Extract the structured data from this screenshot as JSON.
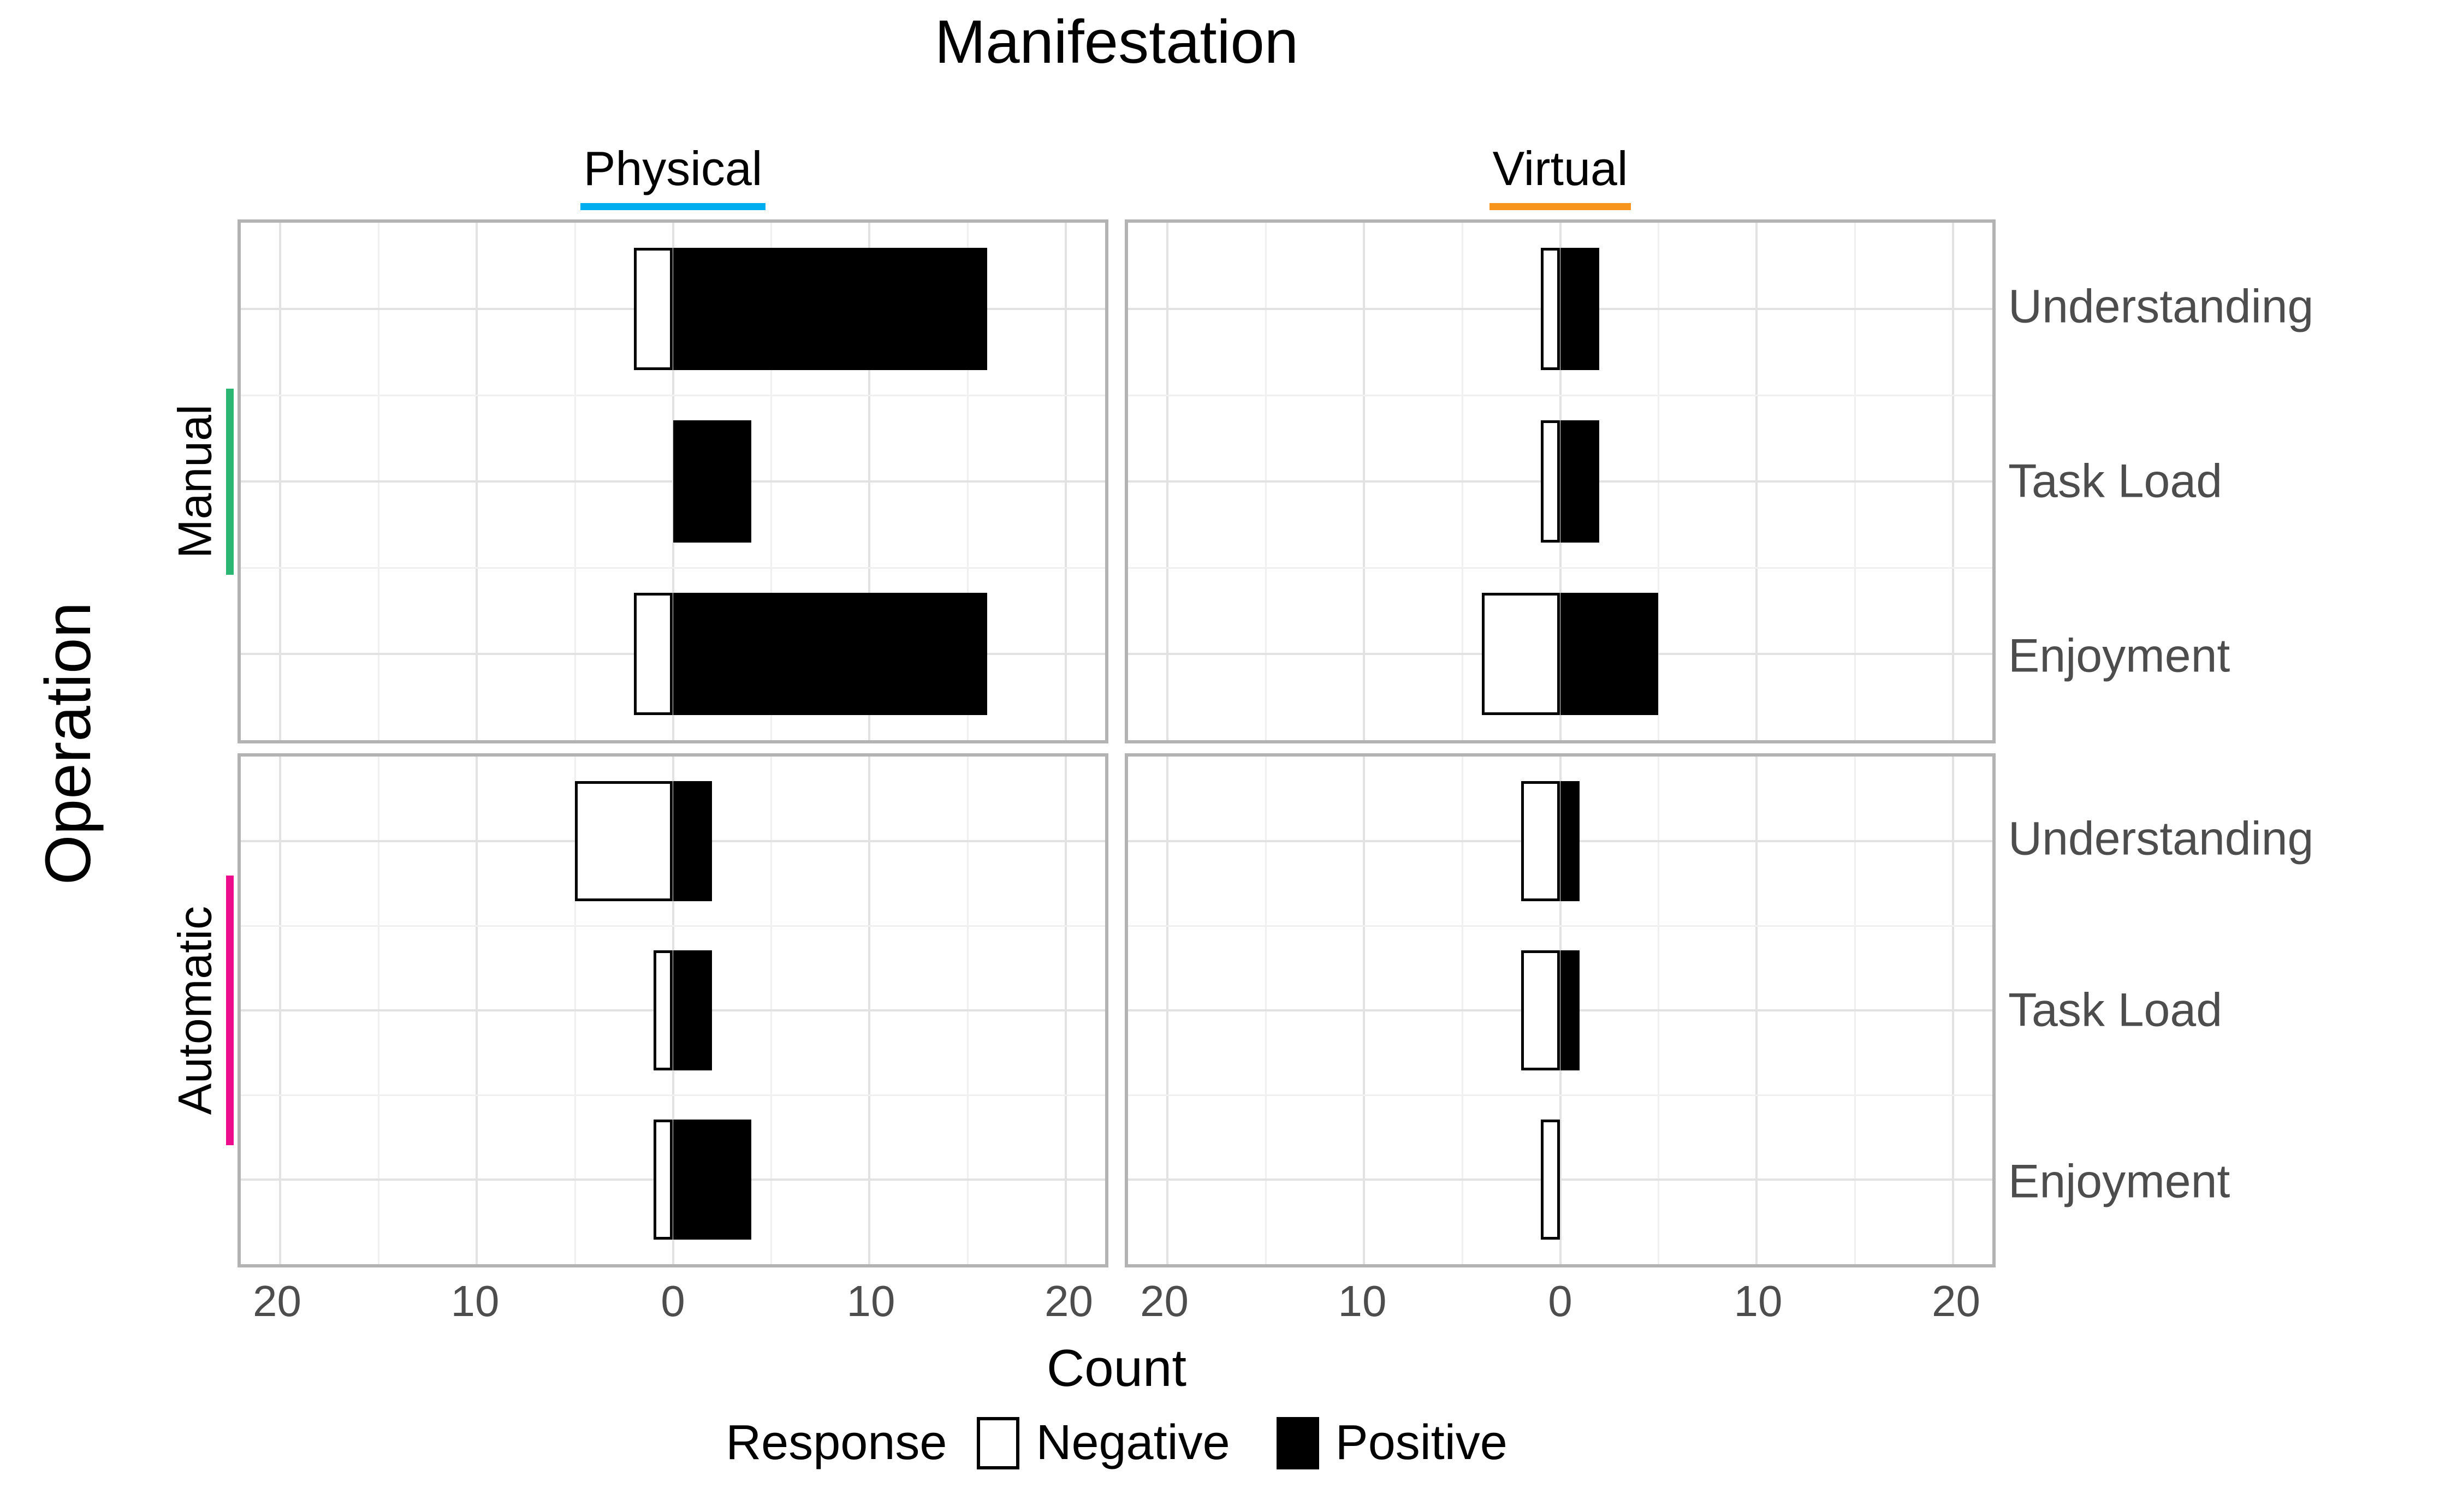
{
  "chart_data": {
    "type": "bar",
    "subtype": "horizontal-diverging-stacked",
    "title": "Manifestation",
    "col_facet_title": "Manifestation",
    "row_facet_title": "Operation",
    "xlabel": "Count",
    "x_tick_values": [
      -20,
      -10,
      0,
      10,
      20
    ],
    "x_tick_display": [
      "20",
      "10",
      "0",
      "10",
      "20"
    ],
    "xlim": [
      -22,
      22
    ],
    "grid": {
      "major_x": [
        -20,
        -10,
        0,
        10,
        20
      ],
      "minor_x": [
        -15,
        -5,
        5,
        15
      ],
      "grid_on": true
    },
    "categories": [
      "Understanding",
      "Task Load",
      "Enjoyment"
    ],
    "col_facets": [
      {
        "label": "Physical",
        "accent_color": "#00AEEF"
      },
      {
        "label": "Virtual",
        "accent_color": "#F7941E"
      }
    ],
    "row_facets": [
      {
        "label": "Manual",
        "accent_color": "#2BB673"
      },
      {
        "label": "Automatic",
        "accent_color": "#EC0C8C"
      }
    ],
    "legend": {
      "title": "Response",
      "entries": [
        {
          "label": "Negative",
          "fill": "#FFFFFF"
        },
        {
          "label": "Positive",
          "fill": "#000000"
        }
      ],
      "position": "bottom"
    },
    "panels": [
      {
        "row": "Manual",
        "col": "Physical",
        "bars": [
          {
            "category": "Understanding",
            "negative": 2,
            "positive": 16
          },
          {
            "category": "Task Load",
            "negative": 0,
            "positive": 4
          },
          {
            "category": "Enjoyment",
            "negative": 2,
            "positive": 16
          }
        ]
      },
      {
        "row": "Manual",
        "col": "Virtual",
        "bars": [
          {
            "category": "Understanding",
            "negative": 1,
            "positive": 2
          },
          {
            "category": "Task Load",
            "negative": 1,
            "positive": 2
          },
          {
            "category": "Enjoyment",
            "negative": 4,
            "positive": 5
          }
        ]
      },
      {
        "row": "Automatic",
        "col": "Physical",
        "bars": [
          {
            "category": "Understanding",
            "negative": 5,
            "positive": 2
          },
          {
            "category": "Task Load",
            "negative": 1,
            "positive": 2
          },
          {
            "category": "Enjoyment",
            "negative": 1,
            "positive": 4
          }
        ]
      },
      {
        "row": "Automatic",
        "col": "Virtual",
        "bars": [
          {
            "category": "Understanding",
            "negative": 2,
            "positive": 1
          },
          {
            "category": "Task Load",
            "negative": 2,
            "positive": 1
          },
          {
            "category": "Enjoyment",
            "negative": 1,
            "positive": 0
          }
        ]
      }
    ],
    "style": {
      "bar_fill_negative": "#FFFFFF",
      "bar_fill_positive": "#000000",
      "bar_border": "#000000",
      "panel_border": "#B3B3B3",
      "grid_major": "#E2E2E2",
      "grid_minor": "#F0F0F0",
      "tick_text_color": "#4D4D4D",
      "category_text_color": "#4D4D4D"
    }
  }
}
